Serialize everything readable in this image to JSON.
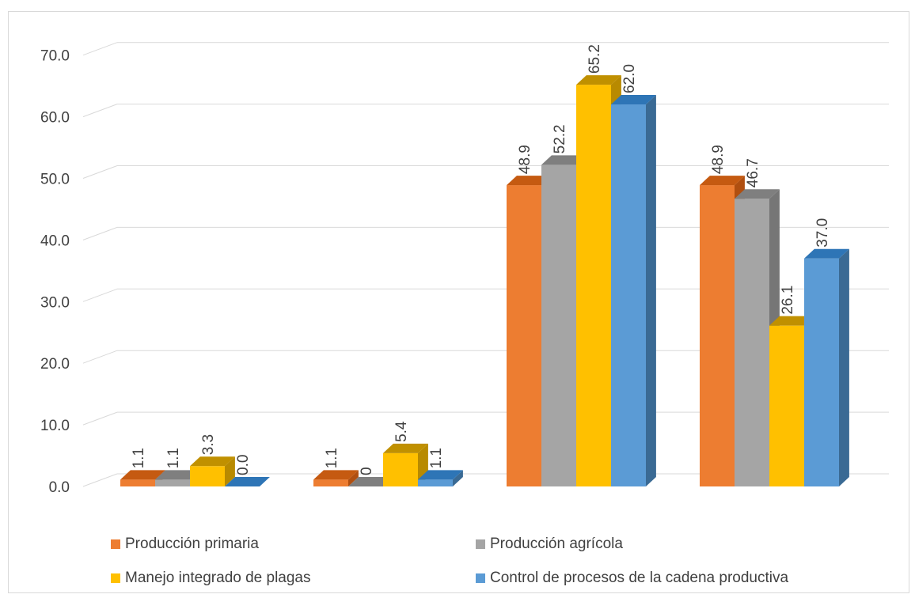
{
  "chart_data": {
    "type": "bar",
    "categories": [
      "",
      "",
      "",
      ""
    ],
    "series": [
      {
        "name": "Producción primaria",
        "values": [
          1.1,
          1.1,
          48.9,
          48.9
        ],
        "labels": [
          "1.1",
          "1.1",
          "48.9",
          "48.9"
        ],
        "color": "#ED7D31",
        "top_color": "#C55A11",
        "side_color": "#B04F10"
      },
      {
        "name": "Producción agrícola",
        "values": [
          1.1,
          0,
          52.2,
          46.7
        ],
        "labels": [
          "1.1",
          "0",
          "52.2",
          "46.7"
        ],
        "color": "#A5A5A5",
        "top_color": "#7F7F7F",
        "side_color": "#767676"
      },
      {
        "name": "Manejo integrado de plagas",
        "values": [
          3.3,
          5.4,
          65.2,
          26.1
        ],
        "labels": [
          "3.3",
          "5.4",
          "65.2",
          "26.1"
        ],
        "color": "#FFC000",
        "top_color": "#C09000",
        "side_color": "#B88A00"
      },
      {
        "name": "Control de procesos de la cadena productiva",
        "values": [
          0.0,
          1.1,
          62.0,
          37.0
        ],
        "labels": [
          "0.0",
          "1.1",
          "62.0",
          "37.0"
        ],
        "color": "#5B9BD5",
        "top_color": "#2E75B6",
        "side_color": "#3A6A94"
      }
    ],
    "yticks": [
      "0.0",
      "10.0",
      "20.0",
      "30.0",
      "40.0",
      "50.0",
      "60.0",
      "70.0"
    ],
    "ylim": [
      0,
      70
    ],
    "grid": true,
    "legend_position": "bottom"
  }
}
